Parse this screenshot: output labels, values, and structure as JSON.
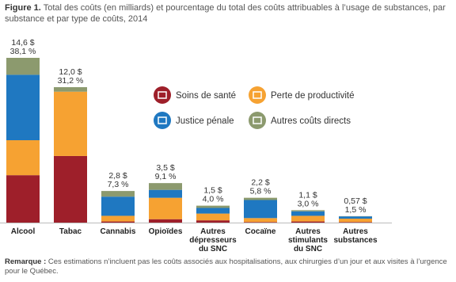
{
  "chart_data": {
    "type": "stacked-bar",
    "title_label": "Figure 1.",
    "title": "Total des coûts (en milliards) et pourcentage du total des coûts attribuables à l’usage de substances, par substance et par type de coûts, 2014",
    "categories": [
      "Alcool",
      "Tabac",
      "Cannabis",
      "Opioïdes",
      "Autres dépresseurs du SNC",
      "Cocaïne",
      "Autres stimulants du SNC",
      "Autres substances"
    ],
    "series": [
      {
        "name": "Soins de santé",
        "color": "#9e1f2a",
        "values": [
          4.2,
          5.9,
          0.1,
          0.3,
          0.2,
          0.05,
          0.1,
          0.05
        ]
      },
      {
        "name": "Perte de productivité",
        "color": "#f6a232",
        "values": [
          3.1,
          5.7,
          0.5,
          1.9,
          0.6,
          0.35,
          0.5,
          0.3
        ]
      },
      {
        "name": "Justice pénale",
        "color": "#1f78c1",
        "values": [
          5.8,
          0,
          1.7,
          0.7,
          0.5,
          1.6,
          0.4,
          0.2
        ]
      },
      {
        "name": "Autres coûts directs",
        "color": "#8c9a6e",
        "values": [
          1.5,
          0.4,
          0.5,
          0.6,
          0.2,
          0.2,
          0.1,
          0.02
        ]
      }
    ],
    "total_labels": [
      "14,6 $",
      "12,0 $",
      "2,8 $",
      "3,5 $",
      "1,5 $",
      "2,2 $",
      "1,1 $",
      "0,57 $"
    ],
    "share_labels": [
      "38,1 %",
      "31,2 %",
      "7,3 %",
      "9,1 %",
      "4,0 %",
      "5,8 %",
      "3,0 %",
      "1,5 %"
    ],
    "note": {
      "label": "Remarque :",
      "text": "Ces estimations n’incluent pas les coûts associés aux hospitalisations, aux chirurgies d’un jour et aux visites à l’urgence pour le Québec."
    }
  }
}
